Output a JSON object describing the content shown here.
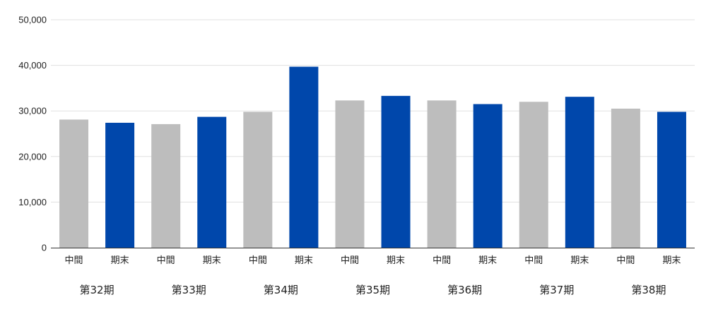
{
  "chart_data": {
    "type": "bar",
    "groups": [
      "第32期",
      "第33期",
      "第34期",
      "第35期",
      "第36期",
      "第37期",
      "第38期"
    ],
    "subcategories": [
      "中間",
      "期末"
    ],
    "categories": [
      "中間",
      "期末",
      "中間",
      "期末",
      "中間",
      "期末",
      "中間",
      "期末",
      "中間",
      "期末",
      "中間",
      "期末",
      "中間",
      "期末"
    ],
    "values": [
      28100,
      27400,
      27100,
      28700,
      29800,
      39700,
      32300,
      33300,
      32300,
      31500,
      32000,
      33100,
      30500,
      29800
    ],
    "colors": {
      "中間": "#bdbdbd",
      "期末": "#0047ab"
    },
    "ylim": [
      0,
      50000
    ],
    "yticks": [
      0,
      10000,
      20000,
      30000,
      40000,
      50000
    ],
    "ytick_labels": [
      "0",
      "10,000",
      "20,000",
      "30,000",
      "40,000",
      "50,000"
    ],
    "grid": true,
    "legend": "none"
  }
}
